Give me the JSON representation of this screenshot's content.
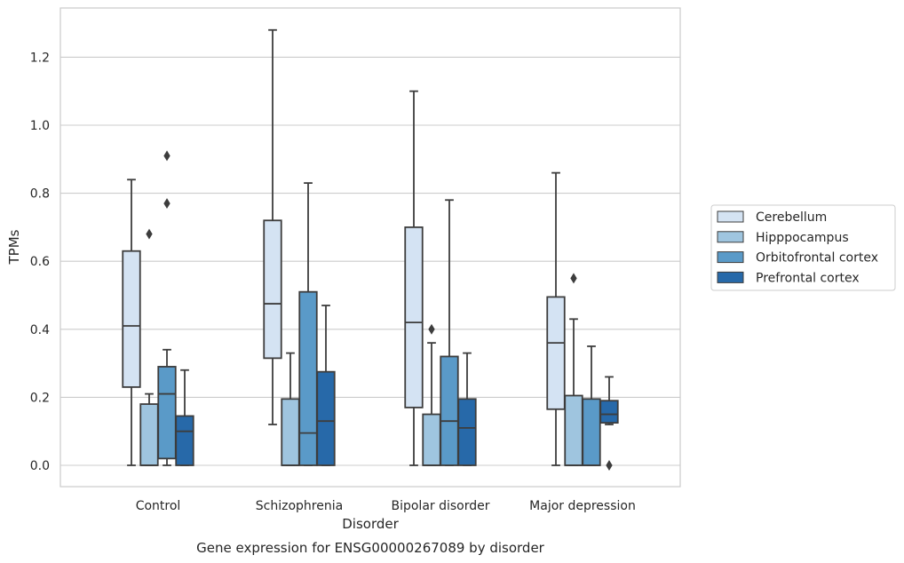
{
  "chart_data": {
    "type": "box",
    "title": "",
    "caption": "Gene expression for ENSG00000267089 by disorder",
    "xlabel": "Disorder",
    "ylabel": "TPMs",
    "ylim": [
      -0.06,
      1.35
    ],
    "yticks": [
      "0.0",
      "0.2",
      "0.4",
      "0.6",
      "0.8",
      "1.0",
      "1.2"
    ],
    "grid": "horizontal",
    "legend_position": "right",
    "categories": [
      "Control",
      "Schizophrenia",
      "Bipolar disorder",
      "Major depression"
    ],
    "series": [
      {
        "name": "Cerebellum",
        "color": "#d4e3f3",
        "boxes": [
          {
            "whislo": 0.0,
            "q1": 0.23,
            "med": 0.41,
            "q3": 0.63,
            "whishi": 0.84,
            "fliers": []
          },
          {
            "whislo": 0.12,
            "q1": 0.315,
            "med": 0.475,
            "q3": 0.72,
            "whishi": 1.28,
            "fliers": []
          },
          {
            "whislo": 0.0,
            "q1": 0.17,
            "med": 0.42,
            "q3": 0.7,
            "whishi": 1.1,
            "fliers": []
          },
          {
            "whislo": 0.0,
            "q1": 0.165,
            "med": 0.36,
            "q3": 0.495,
            "whishi": 0.86,
            "fliers": []
          }
        ]
      },
      {
        "name": "Hipppocampus",
        "color": "#9fc5df",
        "boxes": [
          {
            "whislo": 0.0,
            "q1": 0.0,
            "med": 0.0,
            "q3": 0.18,
            "whishi": 0.21,
            "fliers": [
              0.68
            ]
          },
          {
            "whislo": 0.0,
            "q1": 0.0,
            "med": 0.0,
            "q3": 0.195,
            "whishi": 0.33,
            "fliers": []
          },
          {
            "whislo": 0.0,
            "q1": 0.0,
            "med": 0.0,
            "q3": 0.15,
            "whishi": 0.36,
            "fliers": [
              0.4
            ]
          },
          {
            "whislo": 0.0,
            "q1": 0.0,
            "med": 0.0,
            "q3": 0.205,
            "whishi": 0.43,
            "fliers": [
              0.55
            ]
          }
        ]
      },
      {
        "name": "Orbitofrontal cortex",
        "color": "#5a9ac8",
        "boxes": [
          {
            "whislo": 0.0,
            "q1": 0.02,
            "med": 0.21,
            "q3": 0.29,
            "whishi": 0.34,
            "fliers": [
              0.77,
              0.91
            ]
          },
          {
            "whislo": 0.0,
            "q1": 0.0,
            "med": 0.095,
            "q3": 0.51,
            "whishi": 0.83,
            "fliers": []
          },
          {
            "whislo": 0.0,
            "q1": 0.0,
            "med": 0.13,
            "q3": 0.32,
            "whishi": 0.78,
            "fliers": []
          },
          {
            "whislo": 0.0,
            "q1": 0.0,
            "med": 0.0,
            "q3": 0.195,
            "whishi": 0.35,
            "fliers": []
          }
        ]
      },
      {
        "name": "Prefrontal cortex",
        "color": "#2769a9",
        "boxes": [
          {
            "whislo": 0.0,
            "q1": 0.0,
            "med": 0.1,
            "q3": 0.145,
            "whishi": 0.28,
            "fliers": []
          },
          {
            "whislo": 0.0,
            "q1": 0.0,
            "med": 0.13,
            "q3": 0.275,
            "whishi": 0.47,
            "fliers": []
          },
          {
            "whislo": 0.0,
            "q1": 0.0,
            "med": 0.11,
            "q3": 0.195,
            "whishi": 0.33,
            "fliers": []
          },
          {
            "whislo": 0.12,
            "q1": 0.125,
            "med": 0.15,
            "q3": 0.19,
            "whishi": 0.26,
            "fliers": [
              0.0
            ]
          }
        ]
      }
    ]
  }
}
